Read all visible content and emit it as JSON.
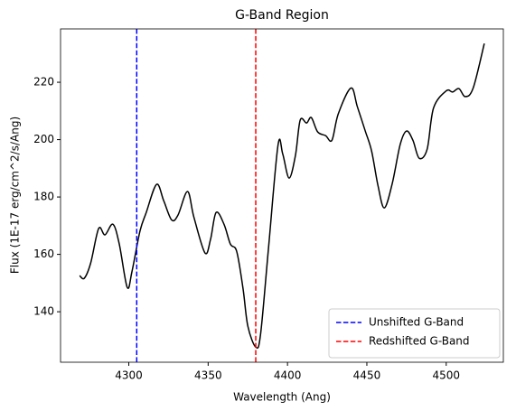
{
  "chart_data": {
    "type": "line",
    "title": "G-Band Region",
    "xlabel": "Wavelength (Ang)",
    "ylabel": "Flux (1E-17 erg/cm^2/s/Ang)",
    "x": [
      4269,
      4272,
      4276,
      4281,
      4285,
      4290,
      4294,
      4299,
      4302,
      4307,
      4311,
      4317.5,
      4322,
      4327,
      4331,
      4337,
      4341,
      4348,
      4351.5,
      4355,
      4360,
      4364,
      4368,
      4372,
      4375,
      4380,
      4383,
      4388,
      4394,
      4397,
      4401,
      4405,
      4408,
      4412,
      4415,
      4419,
      4424,
      4428,
      4432,
      4440,
      4444,
      4449,
      4453,
      4457,
      4461,
      4466,
      4471,
      4475,
      4479,
      4483,
      4488,
      4492,
      4500,
      4504,
      4508,
      4512,
      4517,
      4524
    ],
    "series": [
      {
        "name": null,
        "color": "#000000",
        "values": [
          152.6,
          151.7,
          157,
          169,
          166.8,
          170.5,
          163.6,
          148.5,
          154,
          168,
          174.6,
          184.4,
          178.7,
          172,
          173.7,
          181.9,
          173,
          160.5,
          165.2,
          174.6,
          170.5,
          163.6,
          161,
          148,
          135,
          127.7,
          132,
          162,
          198,
          195,
          186.6,
          194.5,
          206.8,
          205.8,
          207.7,
          202.7,
          201.4,
          199.8,
          209,
          218,
          211.5,
          203,
          196,
          184,
          176.2,
          184.7,
          198.3,
          203,
          199.8,
          193.5,
          196.7,
          211,
          217,
          216.6,
          217.8,
          215,
          218,
          233.5
        ]
      }
    ],
    "vlines": [
      {
        "name": "Unshifted G-Band",
        "color": "#0000ff",
        "x": 4305
      },
      {
        "name": "Redshifted G-Band",
        "color": "#ff0000",
        "x": 4380
      }
    ],
    "xlim": [
      4257,
      4536
    ],
    "xticks": [
      4300,
      4350,
      4400,
      4450,
      4500
    ],
    "ylim": [
      122.4,
      238.6
    ],
    "yticks": [
      140,
      160,
      180,
      200,
      220
    ],
    "grid": false,
    "legend": "lower right"
  }
}
